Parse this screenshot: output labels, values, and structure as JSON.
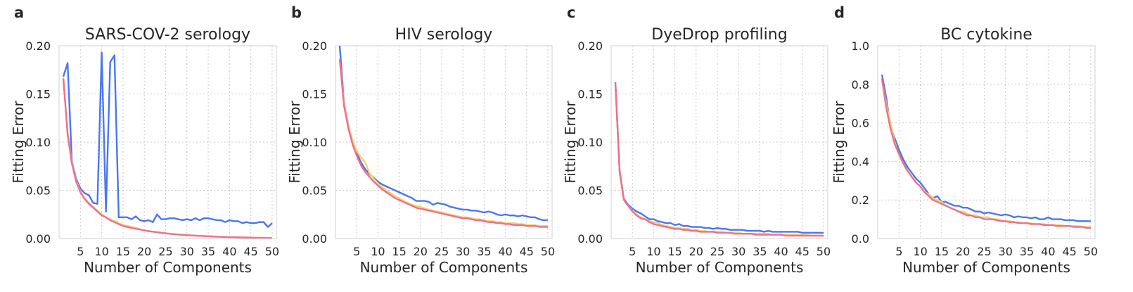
{
  "figure": {
    "ylabel": "Fitting Error",
    "xlabel": "Number of Components"
  },
  "colors": {
    "blue": "#4a76f0",
    "yellow": "#f5d46a",
    "pink": "#ef6f8e",
    "grid": "#c8c8c8",
    "spine": "#d0d0d0"
  },
  "chart_data": [
    {
      "type": "line",
      "letter": "a",
      "title": "SARS-COV-2 serology",
      "xlabel": "Number of Components",
      "ylabel": "Fitting Error",
      "xlim": [
        0,
        51
      ],
      "ylim": [
        0,
        0.2
      ],
      "xticks": [
        5,
        10,
        15,
        20,
        25,
        30,
        35,
        40,
        45,
        50
      ],
      "yticks": [
        0,
        0.05,
        0.1,
        0.15,
        0.2
      ],
      "yticklabels": [
        "0.00",
        "0.05",
        "0.10",
        "0.15",
        "0.20"
      ],
      "grid": true,
      "x": [
        1,
        2,
        3,
        4,
        5,
        6,
        7,
        8,
        9,
        10,
        11,
        12,
        13,
        14,
        15,
        16,
        17,
        18,
        19,
        20,
        21,
        22,
        23,
        24,
        25,
        26,
        27,
        28,
        29,
        30,
        31,
        32,
        33,
        34,
        35,
        36,
        37,
        38,
        39,
        40,
        41,
        42,
        43,
        44,
        45,
        46,
        47,
        48,
        49,
        50
      ],
      "series": [
        {
          "color": "blue",
          "values": [
            0.168,
            0.182,
            0.08,
            0.062,
            0.052,
            0.047,
            0.045,
            0.037,
            0.036,
            0.193,
            0.028,
            0.183,
            0.19,
            0.022,
            0.022,
            0.022,
            0.02,
            0.023,
            0.019,
            0.018,
            0.019,
            0.017,
            0.025,
            0.02,
            0.02,
            0.021,
            0.021,
            0.02,
            0.019,
            0.02,
            0.019,
            0.021,
            0.019,
            0.021,
            0.021,
            0.02,
            0.019,
            0.019,
            0.017,
            0.019,
            0.018,
            0.018,
            0.016,
            0.017,
            0.016,
            0.016,
            0.017,
            0.017,
            0.012,
            0.016
          ]
        },
        {
          "color": "yellow",
          "values": [
            0.167,
            0.11,
            0.079,
            0.06,
            0.049,
            0.042,
            0.037,
            0.033,
            0.029,
            0.025,
            0.022,
            0.02,
            0.018,
            0.016,
            0.014,
            0.013,
            0.012,
            0.011,
            0.0095,
            0.0085,
            0.0078,
            0.0072,
            0.0066,
            0.006,
            0.0055,
            0.005,
            0.0046,
            0.0042,
            0.0039,
            0.0036,
            0.0033,
            0.003,
            0.0028,
            0.0026,
            0.0024,
            0.0022,
            0.002,
            0.0018,
            0.0016,
            0.0015,
            0.0014,
            0.0013,
            0.0012,
            0.0011,
            0.001,
            0.0009,
            0.0008,
            0.0007,
            0.0006,
            0.0005
          ]
        },
        {
          "color": "pink",
          "values": [
            0.166,
            0.108,
            0.078,
            0.059,
            0.048,
            0.041,
            0.036,
            0.032,
            0.028,
            0.024,
            0.022,
            0.019,
            0.017,
            0.015,
            0.013,
            0.012,
            0.011,
            0.0102,
            0.0094,
            0.0084,
            0.0077,
            0.0071,
            0.0065,
            0.0059,
            0.0054,
            0.0049,
            0.0045,
            0.0041,
            0.0038,
            0.0035,
            0.0032,
            0.003,
            0.0028,
            0.0025,
            0.0023,
            0.0021,
            0.0019,
            0.0017,
            0.0016,
            0.0014,
            0.0013,
            0.0012,
            0.0011,
            0.001,
            0.0009,
            0.0008,
            0.0007,
            0.0006,
            0.0005,
            0.0004
          ]
        }
      ]
    },
    {
      "type": "line",
      "letter": "b",
      "title": "HIV serology",
      "xlabel": "Number of Components",
      "ylabel": "Fitting Error",
      "xlim": [
        0,
        51
      ],
      "ylim": [
        0,
        0.2
      ],
      "xticks": [
        5,
        10,
        15,
        20,
        25,
        30,
        35,
        40,
        45,
        50
      ],
      "yticks": [
        0,
        0.05,
        0.1,
        0.15,
        0.2
      ],
      "yticklabels": [
        "0.00",
        "0.05",
        "0.10",
        "0.15",
        "0.20"
      ],
      "grid": true,
      "x": [
        1,
        2,
        3,
        4,
        5,
        6,
        7,
        8,
        9,
        10,
        11,
        12,
        13,
        14,
        15,
        16,
        17,
        18,
        19,
        20,
        21,
        22,
        23,
        24,
        25,
        26,
        27,
        28,
        29,
        30,
        31,
        32,
        33,
        34,
        35,
        36,
        37,
        38,
        39,
        40,
        41,
        42,
        43,
        44,
        45,
        46,
        47,
        48,
        49,
        50
      ],
      "series": [
        {
          "color": "blue",
          "values": [
            0.2,
            0.141,
            0.118,
            0.1,
            0.089,
            0.079,
            0.072,
            0.067,
            0.063,
            0.059,
            0.056,
            0.054,
            0.052,
            0.05,
            0.048,
            0.046,
            0.044,
            0.042,
            0.039,
            0.039,
            0.039,
            0.038,
            0.035,
            0.037,
            0.036,
            0.035,
            0.033,
            0.032,
            0.031,
            0.03,
            0.03,
            0.029,
            0.029,
            0.028,
            0.027,
            0.028,
            0.027,
            0.025,
            0.024,
            0.025,
            0.024,
            0.024,
            0.023,
            0.024,
            0.023,
            0.022,
            0.022,
            0.02,
            0.019,
            0.019
          ]
        },
        {
          "color": "yellow",
          "values": [
            0.186,
            0.141,
            0.117,
            0.102,
            0.091,
            0.084,
            0.079,
            0.068,
            0.062,
            0.057,
            0.053,
            0.05,
            0.047,
            0.044,
            0.042,
            0.039,
            0.037,
            0.035,
            0.034,
            0.033,
            0.031,
            0.03,
            0.029,
            0.028,
            0.027,
            0.026,
            0.025,
            0.024,
            0.023,
            0.022,
            0.022,
            0.021,
            0.02,
            0.02,
            0.019,
            0.018,
            0.018,
            0.017,
            0.017,
            0.016,
            0.016,
            0.016,
            0.015,
            0.015,
            0.014,
            0.014,
            0.014,
            0.013,
            0.013,
            0.013
          ]
        },
        {
          "color": "pink",
          "values": [
            0.186,
            0.138,
            0.115,
            0.098,
            0.086,
            0.076,
            0.069,
            0.064,
            0.059,
            0.055,
            0.051,
            0.048,
            0.045,
            0.042,
            0.04,
            0.038,
            0.036,
            0.034,
            0.032,
            0.031,
            0.03,
            0.029,
            0.028,
            0.027,
            0.026,
            0.025,
            0.024,
            0.023,
            0.022,
            0.021,
            0.021,
            0.02,
            0.019,
            0.019,
            0.018,
            0.017,
            0.017,
            0.016,
            0.016,
            0.015,
            0.015,
            0.014,
            0.014,
            0.014,
            0.013,
            0.013,
            0.013,
            0.012,
            0.012,
            0.012
          ]
        }
      ]
    },
    {
      "type": "line",
      "letter": "c",
      "title": "DyeDrop profiling",
      "xlabel": "Number of Components",
      "ylabel": "Fitting Error",
      "xlim": [
        0,
        51
      ],
      "ylim": [
        0,
        0.2
      ],
      "xticks": [
        5,
        10,
        15,
        20,
        25,
        30,
        35,
        40,
        45,
        50
      ],
      "yticks": [
        0,
        0.05,
        0.1,
        0.15,
        0.2
      ],
      "yticklabels": [
        "0.00",
        "0.05",
        "0.10",
        "0.15",
        "0.20"
      ],
      "grid": true,
      "x": [
        1,
        2,
        3,
        4,
        5,
        6,
        7,
        8,
        9,
        10,
        11,
        12,
        13,
        14,
        15,
        16,
        17,
        18,
        19,
        20,
        21,
        22,
        23,
        24,
        25,
        26,
        27,
        28,
        29,
        30,
        31,
        32,
        33,
        34,
        35,
        36,
        37,
        38,
        39,
        40,
        41,
        42,
        43,
        44,
        45,
        46,
        47,
        48,
        49,
        50
      ],
      "series": [
        {
          "color": "blue",
          "values": [
            0.162,
            0.07,
            0.041,
            0.035,
            0.031,
            0.028,
            0.026,
            0.023,
            0.02,
            0.02,
            0.018,
            0.017,
            0.016,
            0.016,
            0.014,
            0.015,
            0.013,
            0.013,
            0.012,
            0.012,
            0.012,
            0.011,
            0.011,
            0.01,
            0.011,
            0.01,
            0.01,
            0.009,
            0.009,
            0.009,
            0.009,
            0.008,
            0.008,
            0.008,
            0.008,
            0.007,
            0.008,
            0.007,
            0.007,
            0.007,
            0.007,
            0.007,
            0.007,
            0.007,
            0.006,
            0.006,
            0.006,
            0.006,
            0.006,
            0.006
          ]
        },
        {
          "color": "yellow",
          "values": [
            0.161,
            0.069,
            0.04,
            0.034,
            0.029,
            0.025,
            0.022,
            0.02,
            0.018,
            0.017,
            0.016,
            0.014,
            0.013,
            0.012,
            0.011,
            0.011,
            0.01,
            0.01,
            0.009,
            0.009,
            0.008,
            0.008,
            0.007,
            0.007,
            0.007,
            0.007,
            0.006,
            0.006,
            0.006,
            0.006,
            0.005,
            0.005,
            0.005,
            0.005,
            0.005,
            0.005,
            0.005,
            0.004,
            0.004,
            0.004,
            0.004,
            0.004,
            0.004,
            0.004,
            0.004,
            0.004,
            0.003,
            0.003,
            0.003,
            0.003
          ]
        },
        {
          "color": "pink",
          "values": [
            0.161,
            0.069,
            0.04,
            0.034,
            0.028,
            0.024,
            0.021,
            0.02,
            0.017,
            0.015,
            0.014,
            0.013,
            0.012,
            0.011,
            0.01,
            0.01,
            0.009,
            0.009,
            0.008,
            0.008,
            0.007,
            0.007,
            0.007,
            0.007,
            0.006,
            0.006,
            0.006,
            0.006,
            0.005,
            0.005,
            0.005,
            0.005,
            0.005,
            0.004,
            0.004,
            0.004,
            0.004,
            0.004,
            0.004,
            0.004,
            0.003,
            0.003,
            0.003,
            0.003,
            0.003,
            0.003,
            0.003,
            0.003,
            0.003,
            0.003
          ]
        }
      ]
    },
    {
      "type": "line",
      "letter": "d",
      "title": "BC cytokine",
      "xlabel": "Number of Components",
      "ylabel": "Fitting Error",
      "xlim": [
        0,
        51
      ],
      "ylim": [
        0,
        1.0
      ],
      "xticks": [
        5,
        10,
        15,
        20,
        25,
        30,
        35,
        40,
        45,
        50
      ],
      "yticks": [
        0,
        0.2,
        0.4,
        0.6,
        0.8,
        1.0
      ],
      "yticklabels": [
        "0.0",
        "0.2",
        "0.4",
        "0.6",
        "0.8",
        "1.0"
      ],
      "grid": true,
      "x": [
        1,
        2,
        3,
        4,
        5,
        6,
        7,
        8,
        9,
        10,
        11,
        12,
        13,
        14,
        15,
        16,
        17,
        18,
        19,
        20,
        21,
        22,
        23,
        24,
        25,
        26,
        27,
        28,
        29,
        30,
        31,
        32,
        33,
        34,
        35,
        36,
        37,
        38,
        39,
        40,
        41,
        42,
        43,
        44,
        45,
        46,
        47,
        48,
        49,
        50
      ],
      "series": [
        {
          "color": "blue",
          "values": [
            0.85,
            0.73,
            0.58,
            0.52,
            0.46,
            0.41,
            0.37,
            0.34,
            0.31,
            0.29,
            0.26,
            0.23,
            0.21,
            0.22,
            0.19,
            0.19,
            0.18,
            0.17,
            0.17,
            0.16,
            0.16,
            0.15,
            0.14,
            0.14,
            0.13,
            0.135,
            0.13,
            0.125,
            0.12,
            0.125,
            0.12,
            0.11,
            0.115,
            0.11,
            0.11,
            0.105,
            0.11,
            0.1,
            0.1,
            0.11,
            0.1,
            0.1,
            0.1,
            0.095,
            0.095,
            0.095,
            0.09,
            0.09,
            0.09,
            0.09
          ]
        },
        {
          "color": "yellow",
          "values": [
            0.82,
            0.7,
            0.6,
            0.5,
            0.43,
            0.39,
            0.35,
            0.32,
            0.29,
            0.27,
            0.24,
            0.23,
            0.21,
            0.2,
            0.19,
            0.17,
            0.16,
            0.15,
            0.14,
            0.14,
            0.13,
            0.12,
            0.12,
            0.11,
            0.11,
            0.11,
            0.1,
            0.1,
            0.095,
            0.09,
            0.09,
            0.085,
            0.085,
            0.08,
            0.08,
            0.08,
            0.075,
            0.075,
            0.075,
            0.07,
            0.07,
            0.07,
            0.07,
            0.065,
            0.065,
            0.065,
            0.065,
            0.06,
            0.06,
            0.06
          ]
        },
        {
          "color": "pink",
          "values": [
            0.83,
            0.68,
            0.57,
            0.49,
            0.44,
            0.39,
            0.35,
            0.32,
            0.29,
            0.27,
            0.24,
            0.22,
            0.2,
            0.19,
            0.18,
            0.17,
            0.16,
            0.15,
            0.14,
            0.13,
            0.12,
            0.12,
            0.11,
            0.11,
            0.1,
            0.1,
            0.1,
            0.095,
            0.09,
            0.09,
            0.085,
            0.085,
            0.08,
            0.08,
            0.08,
            0.075,
            0.075,
            0.075,
            0.07,
            0.07,
            0.07,
            0.065,
            0.065,
            0.065,
            0.065,
            0.06,
            0.06,
            0.06,
            0.055,
            0.055
          ]
        }
      ]
    }
  ]
}
